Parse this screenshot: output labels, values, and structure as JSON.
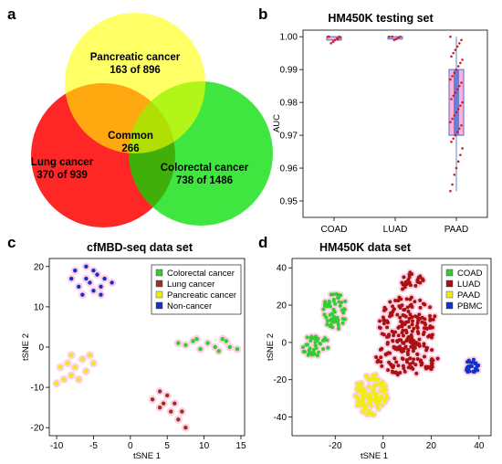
{
  "panels": {
    "a": "a",
    "b": "b",
    "c": "c",
    "d": "d"
  },
  "venn": {
    "pancreatic": {
      "name": "Pancreatic cancer",
      "count": "163 of 896",
      "color": "#ffff00"
    },
    "lung": {
      "name": "Lung cancer",
      "count": "370 of 939",
      "color": "#ff0000"
    },
    "colorectal": {
      "name": "Colorectal cancer",
      "count": "738 of 1486",
      "color": "#00dd00"
    },
    "common": {
      "name": "Common",
      "count": "266"
    }
  },
  "chart_data": [
    {
      "panel": "b",
      "type": "scatter",
      "title": "HM450K testing set",
      "ylabel": "AUC",
      "xlabel": "",
      "categories": [
        "COAD",
        "LUAD",
        "PAAD"
      ],
      "ylim": [
        0.945,
        1.002
      ],
      "yticks": [
        1.0,
        0.99,
        0.98,
        0.97,
        0.96,
        0.95
      ],
      "box_color": "#6a7fd4",
      "point_color": "#cc2222",
      "series": [
        {
          "values": [
            1.0,
            1.0,
            0.9995,
            0.999,
            0.9985,
            0.998,
            1.0,
            0.9998,
            0.9992
          ]
        },
        {
          "values": [
            1.0,
            1.0,
            0.9997,
            0.9993,
            0.999,
            1.0
          ]
        },
        {
          "values": [
            1.0,
            0.999,
            0.998,
            0.997,
            0.996,
            0.995,
            0.994,
            0.993,
            0.992,
            0.991,
            0.99,
            0.989,
            0.988,
            0.987,
            0.986,
            0.985,
            0.984,
            0.983,
            0.982,
            0.981,
            0.98,
            0.979,
            0.978,
            0.977,
            0.976,
            0.975,
            0.974,
            0.973,
            0.972,
            0.971,
            0.97,
            0.969,
            0.968,
            0.966,
            0.964,
            0.962,
            0.96,
            0.958,
            0.955,
            0.953
          ]
        }
      ]
    },
    {
      "panel": "c",
      "type": "scatter",
      "title": "cfMBD-seq data set",
      "xlabel": "tSNE 1",
      "ylabel": "tSNE 2",
      "xlim": [
        -11,
        15.5
      ],
      "ylim": [
        -22,
        22
      ],
      "xticks": [
        -10,
        -5,
        0,
        5,
        10,
        15
      ],
      "yticks": [
        -20,
        -10,
        0,
        10,
        20
      ],
      "legend_position": "top-right",
      "series": [
        {
          "name": "Colorectal cancer",
          "color": "#33cc33",
          "points": [
            [
              6.5,
              1
            ],
            [
              7.5,
              0.5
            ],
            [
              8.5,
              1.5
            ],
            [
              9.5,
              -0.5
            ],
            [
              10.5,
              1
            ],
            [
              11.5,
              0
            ],
            [
              12,
              -1
            ],
            [
              13,
              1.5
            ],
            [
              13.5,
              0
            ],
            [
              14.5,
              -0.5
            ],
            [
              12.5,
              2
            ],
            [
              9,
              2
            ]
          ]
        },
        {
          "name": "Lung cancer",
          "color": "#993322",
          "points": [
            [
              3,
              -13
            ],
            [
              4,
              -11
            ],
            [
              4.5,
              -14
            ],
            [
              5,
              -12
            ],
            [
              5.5,
              -16
            ],
            [
              6,
              -14
            ],
            [
              7,
              -16
            ],
            [
              7.5,
              -20
            ],
            [
              6.5,
              -18
            ],
            [
              4,
              -15
            ]
          ]
        },
        {
          "name": "Pancreatic cancer",
          "color": "#eeee00",
          "points": [
            [
              -10,
              -9
            ],
            [
              -9.5,
              -5
            ],
            [
              -9,
              -8
            ],
            [
              -8.5,
              -4
            ],
            [
              -8,
              -7
            ],
            [
              -7.5,
              -5
            ],
            [
              -7,
              -8
            ],
            [
              -6.5,
              -3
            ],
            [
              -6,
              -6
            ],
            [
              -5.5,
              -2
            ],
            [
              -5,
              -4
            ],
            [
              -8,
              -2
            ]
          ]
        },
        {
          "name": "Non-cancer",
          "color": "#1133cc",
          "points": [
            [
              -8,
              17
            ],
            [
              -7,
              15
            ],
            [
              -6,
              20
            ],
            [
              -5.5,
              16
            ],
            [
              -5,
              14
            ],
            [
              -4.5,
              18
            ],
            [
              -4,
              15
            ],
            [
              -3.5,
              17
            ],
            [
              -2.5,
              16
            ],
            [
              -7.5,
              19
            ],
            [
              -6.5,
              13
            ],
            [
              -6,
              17
            ],
            [
              -5,
              19
            ],
            [
              -4,
              13
            ]
          ]
        }
      ]
    },
    {
      "panel": "d",
      "type": "scatter",
      "title": "HM450K data set",
      "xlabel": "tSNE 1",
      "ylabel": "tSNE 2",
      "xlim": [
        -38,
        45
      ],
      "ylim": [
        -50,
        45
      ],
      "xticks": [
        -20,
        0,
        20,
        40
      ],
      "yticks": [
        -40,
        -20,
        0,
        20,
        40
      ],
      "legend_position": "top-right",
      "series": [
        {
          "name": "COAD",
          "color": "#33cc33",
          "clusters": [
            {
              "cx": -20,
              "cy": 17,
              "rx": 5,
              "ry": 10,
              "n": 60
            },
            {
              "cx": -28,
              "cy": -2,
              "rx": 6,
              "ry": 6,
              "n": 40
            }
          ]
        },
        {
          "name": "LUAD",
          "color": "#aa1111",
          "clusters": [
            {
              "cx": 10,
              "cy": 10,
              "rx": 12,
              "ry": 15,
              "n": 150
            },
            {
              "cx": 10,
              "cy": -8,
              "rx": 13,
              "ry": 10,
              "n": 100
            },
            {
              "cx": 12,
              "cy": 32,
              "rx": 5,
              "ry": 6,
              "n": 25
            }
          ]
        },
        {
          "name": "PAAD",
          "color": "#eeee11",
          "clusters": [
            {
              "cx": -5,
              "cy": -28,
              "rx": 7,
              "ry": 11,
              "n": 110
            }
          ]
        },
        {
          "name": "PBMC",
          "color": "#1133cc",
          "clusters": [
            {
              "cx": 37,
              "cy": -13,
              "rx": 3,
              "ry": 4,
              "n": 30
            }
          ]
        }
      ]
    }
  ]
}
